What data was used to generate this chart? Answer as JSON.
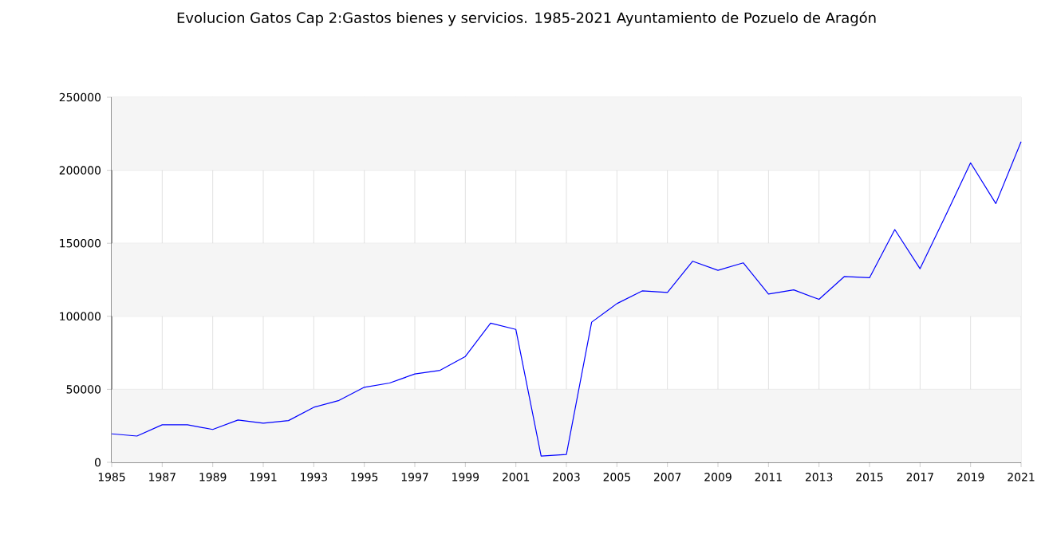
{
  "chart_data": {
    "type": "line",
    "title": "Evolucion Gatos Cap 2:Gastos bienes y servicios. 1985-2021 Ayuntamiento de Pozuelo de Aragón",
    "x": [
      1985,
      1986,
      1987,
      1988,
      1989,
      1990,
      1991,
      1992,
      1993,
      1994,
      1995,
      1996,
      1997,
      1998,
      1999,
      2000,
      2001,
      2002,
      2003,
      2004,
      2005,
      2006,
      2007,
      2008,
      2009,
      2010,
      2011,
      2012,
      2013,
      2014,
      2015,
      2016,
      2017,
      2018,
      2019,
      2020,
      2021
    ],
    "series": [
      {
        "color": "#0000ff",
        "values": [
          19500,
          18000,
          25700,
          25700,
          22500,
          29000,
          26800,
          28600,
          37700,
          42400,
          51400,
          54300,
          60500,
          63000,
          72500,
          95300,
          91000,
          4300,
          5400,
          96000,
          108700,
          117400,
          116300,
          137700,
          131500,
          136600,
          115200,
          118100,
          111600,
          127200,
          126400,
          159400,
          132600,
          168500,
          205100,
          177200,
          219600
        ]
      }
    ],
    "xlim": [
      1985,
      2021
    ],
    "xticks": [
      1985,
      1987,
      1989,
      1991,
      1993,
      1995,
      1997,
      1999,
      2001,
      2003,
      2005,
      2007,
      2009,
      2011,
      2013,
      2015,
      2017,
      2019,
      2021
    ],
    "ylim": [
      0,
      250000
    ],
    "yticks": [
      0,
      50000,
      100000,
      150000,
      200000,
      250000
    ],
    "grid": true,
    "marker": "none",
    "line_style": "solid"
  }
}
